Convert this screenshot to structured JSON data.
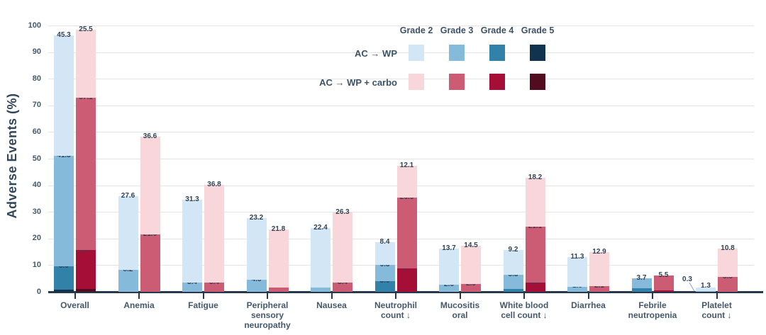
{
  "chart_data": {
    "type": "bar",
    "stacked": true,
    "ylabel": "Adverse Events (%)",
    "ylim": [
      0,
      100
    ],
    "yticks": [
      0,
      10,
      20,
      30,
      40,
      50,
      60,
      70,
      80,
      90,
      100
    ],
    "grid": true,
    "legend_position": "top-right",
    "grade_headers": [
      "Grade 2",
      "Grade 3",
      "Grade 4",
      "Grade 5"
    ],
    "categories": [
      "Overall",
      "Anemia",
      "Fatigue",
      "Peripheral\nsensory\nneuropathy",
      "Nausea",
      "Neutrophil\ncount ↓",
      "Mucositis\noral",
      "White blood\ncell count ↓",
      "Diarrhea",
      "Febrile\nneutropenia",
      "Platelet\ncount ↓"
    ],
    "series": [
      {
        "name": "AC → WP",
        "colors": {
          "grade2": "#d2e6f6",
          "grade3": "#85bada",
          "grade4": "#3181a8",
          "grade5": "#12334f"
        },
        "values": {
          "grade2": [
            45.3,
            27.6,
            31.3,
            23.2,
            22.4,
            8.4,
            13.7,
            9.2,
            11.3,
            null,
            1.3
          ],
          "grade3": [
            41.3,
            8.2,
            3.4,
            4.5,
            1.6,
            6.3,
            2.6,
            5.3,
            1.8,
            3.7,
            0.3
          ],
          "grade4": [
            8.9,
            null,
            null,
            null,
            null,
            3.9,
            null,
            1.1,
            null,
            1.3,
            null
          ],
          "grade5": [
            0.8,
            null,
            null,
            null,
            null,
            null,
            null,
            null,
            null,
            null,
            null
          ]
        }
      },
      {
        "name": "AC → WP + carbo",
        "colors": {
          "grade2": "#f9d6da",
          "grade3": "#cc5b74",
          "grade4": "#a40e37",
          "grade5": "#520c1f"
        },
        "values": {
          "grade2": [
            25.5,
            36.6,
            36.8,
            21.8,
            26.3,
            12.1,
            14.5,
            18.2,
            12.9,
            null,
            10.8
          ],
          "grade3": [
            57.1,
            21.6,
            3.4,
            1.6,
            3.4,
            26.6,
            2.9,
            21.1,
            2.1,
            5.5,
            5.5
          ],
          "grade4": [
            14.7,
            null,
            null,
            null,
            null,
            8.7,
            null,
            3.4,
            null,
            0.5,
            null
          ],
          "grade5": [
            1.1,
            null,
            null,
            null,
            null,
            null,
            null,
            null,
            null,
            null,
            null
          ]
        }
      }
    ],
    "white_labels": [
      "0|grade5|0",
      "1|grade5|0",
      "1|grade4|9"
    ],
    "callout": {
      "series": 0,
      "grade": "grade3",
      "index": 10,
      "label": "0.3"
    },
    "axis_color": "#25384d",
    "grid_color": "#e4e4e4",
    "value_label_color": "#2f4256",
    "tick_label_color": "#44586c"
  }
}
